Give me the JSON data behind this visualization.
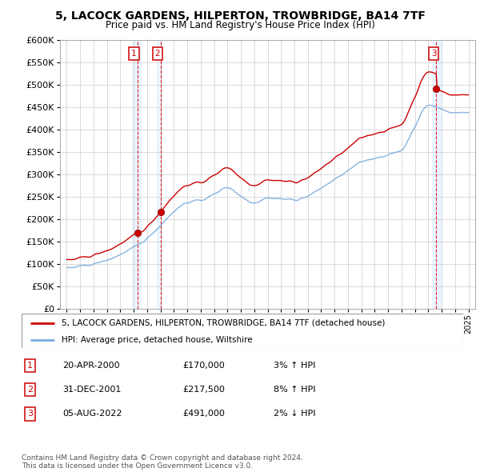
{
  "title1": "5, LACOCK GARDENS, HILPERTON, TROWBRIDGE, BA14 7TF",
  "title2": "Price paid vs. HM Land Registry's House Price Index (HPI)",
  "ylabel_ticks": [
    "£0",
    "£50K",
    "£100K",
    "£150K",
    "£200K",
    "£250K",
    "£300K",
    "£350K",
    "£400K",
    "£450K",
    "£500K",
    "£550K",
    "£600K"
  ],
  "ytick_values": [
    0,
    50000,
    100000,
    150000,
    200000,
    250000,
    300000,
    350000,
    400000,
    450000,
    500000,
    550000,
    600000
  ],
  "legend_line1": "5, LACOCK GARDENS, HILPERTON, TROWBRIDGE, BA14 7TF (detached house)",
  "legend_line2": "HPI: Average price, detached house, Wiltshire",
  "line_color_red": "#cc0000",
  "line_color_blue": "#7aaadd",
  "transactions": [
    {
      "id": 1,
      "date_num": 2000.29,
      "price": 170000
    },
    {
      "id": 2,
      "date_num": 2002.0,
      "price": 217500
    },
    {
      "id": 3,
      "date_num": 2022.59,
      "price": 491000
    }
  ],
  "table_rows": [
    {
      "id": "1",
      "date": "20-APR-2000",
      "price": "£170,000",
      "pct": "3%",
      "dir": "↑",
      "hpi": "HPI"
    },
    {
      "id": "2",
      "date": "31-DEC-2001",
      "price": "£217,500",
      "pct": "8%",
      "dir": "↑",
      "hpi": "HPI"
    },
    {
      "id": "3",
      "date": "05-AUG-2022",
      "price": "£491,000",
      "pct": "2%",
      "dir": "↓",
      "hpi": "HPI"
    }
  ],
  "footer": "Contains HM Land Registry data © Crown copyright and database right 2024.\nThis data is licensed under the Open Government Licence v3.0.",
  "xlim": [
    1994.5,
    2025.5
  ],
  "ylim": [
    0,
    600000
  ],
  "shade_regions": [
    {
      "x_start": 1999.9,
      "x_end": 2000.6
    },
    {
      "x_start": 2001.7,
      "x_end": 2002.15
    },
    {
      "x_start": 2022.3,
      "x_end": 2023.0
    }
  ]
}
